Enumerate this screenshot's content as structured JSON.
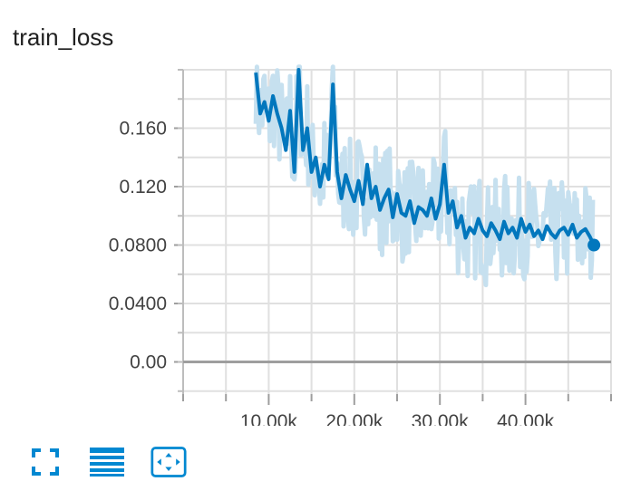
{
  "card": {
    "title": "train_loss"
  },
  "toolbar": {
    "buttons": [
      {
        "name": "fullscreen-button",
        "icon": "fullscreen-icon"
      },
      {
        "name": "log-scale-button",
        "icon": "list-icon"
      },
      {
        "name": "fit-domain-button",
        "icon": "fit-domain-icon"
      }
    ]
  },
  "chart_data": {
    "type": "line",
    "title": "train_loss",
    "xlabel": "",
    "ylabel": "",
    "xlim": [
      0,
      50000
    ],
    "ylim": [
      -0.022,
      0.2
    ],
    "x_ticks": [
      10000,
      20000,
      30000,
      40000
    ],
    "x_tick_labels": [
      "10.00k",
      "20.00k",
      "30.00k",
      "40.00k"
    ],
    "y_ticks": [
      0.0,
      0.04,
      0.08,
      0.12,
      0.16
    ],
    "y_tick_labels": [
      "0.00",
      "0.0400",
      "0.0800",
      "0.120",
      "0.160"
    ],
    "grid": true,
    "colors": {
      "smoothed": "#0277bd",
      "raw": "#c6e0ef",
      "zero_line": "#9e9e9e",
      "grid": "#e0e0e0"
    },
    "series": [
      {
        "x": [
          8500,
          9000,
          9500,
          10000,
          10500,
          11000,
          11500,
          12000,
          12500,
          13000,
          13500,
          14000,
          14500,
          15000,
          15500,
          16000,
          16500,
          17000,
          17500,
          18000,
          18500,
          19000,
          19500,
          20000,
          20500,
          21000,
          21500,
          22000,
          22500,
          23000,
          23500,
          24000,
          24500,
          25000,
          25500,
          26000,
          26500,
          27000,
          27500,
          28000,
          28500,
          29000,
          29500,
          30000,
          30500,
          31000,
          31500,
          32000,
          32500,
          33000,
          33500,
          34000,
          34500,
          35000,
          35500,
          36000,
          36500,
          37000,
          37500,
          38000,
          38500,
          39000,
          39500,
          40000,
          40500,
          41000,
          41500,
          42000,
          42500,
          43000,
          43500,
          44000,
          44500,
          45000,
          45500,
          46000,
          46500,
          47000,
          47500,
          48000
        ],
        "y": [
          0.198,
          0.17,
          0.178,
          0.165,
          0.182,
          0.17,
          0.16,
          0.145,
          0.172,
          0.13,
          0.2,
          0.145,
          0.16,
          0.13,
          0.14,
          0.12,
          0.135,
          0.125,
          0.19,
          0.13,
          0.112,
          0.128,
          0.118,
          0.11,
          0.124,
          0.108,
          0.135,
          0.112,
          0.12,
          0.104,
          0.112,
          0.118,
          0.099,
          0.115,
          0.102,
          0.1,
          0.11,
          0.095,
          0.106,
          0.104,
          0.1,
          0.112,
          0.098,
          0.108,
          0.135,
          0.102,
          0.11,
          0.092,
          0.1,
          0.085,
          0.092,
          0.088,
          0.098,
          0.09,
          0.086,
          0.095,
          0.09,
          0.084,
          0.096,
          0.088,
          0.092,
          0.085,
          0.098,
          0.089,
          0.094,
          0.086,
          0.09,
          0.084,
          0.093,
          0.088,
          0.085,
          0.09,
          0.092,
          0.087,
          0.094,
          0.085,
          0.089,
          0.091,
          0.086,
          0.08
        ]
      }
    ]
  }
}
